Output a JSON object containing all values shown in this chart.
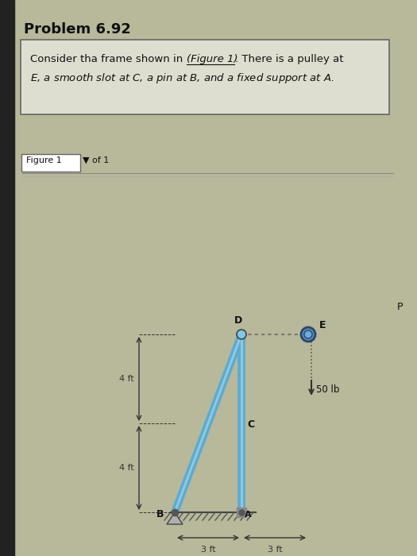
{
  "title": "Problem 6.92",
  "bg_color": "#b8b89a",
  "panel_bg": "#c8c8aa",
  "box_bg": "#deded0",
  "text_color": "#111111",
  "frame_color": "#5bacd1",
  "frame_lw": 7,
  "dim_color": "#333333",
  "B": [
    0,
    0
  ],
  "A": [
    3,
    0
  ],
  "D": [
    3,
    8
  ],
  "E": [
    6,
    8
  ],
  "C": [
    3,
    4
  ],
  "load_magnitude": "50 lb",
  "dim_4ft_upper": "4 ft",
  "dim_4ft_lower": "4 ft",
  "dim_3ft_left": "3 ft",
  "dim_3ft_right": "3 ft"
}
